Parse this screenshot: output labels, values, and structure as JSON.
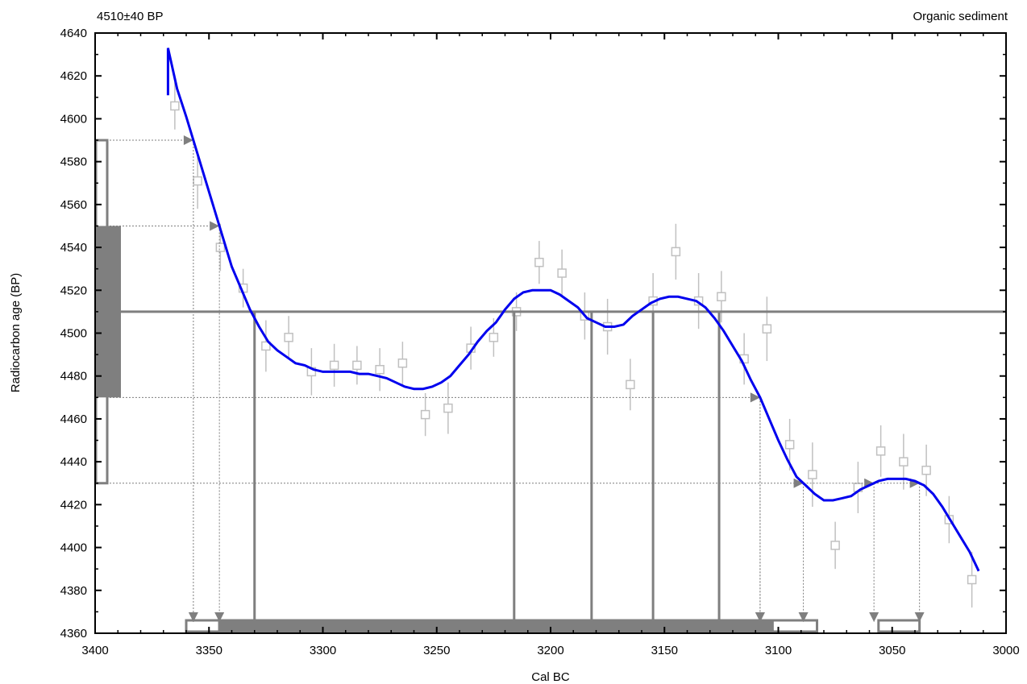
{
  "chart_data": {
    "type": "line",
    "title_left": "4510±40 BP",
    "title_right": "Organic sediment",
    "xlabel": "Cal BC",
    "ylabel": "Radiocarbon age (BP)",
    "xlim": [
      3400,
      3000
    ],
    "ylim": [
      4360,
      4640
    ],
    "x_ticks": [
      "3400",
      "3350",
      "3300",
      "3250",
      "3200",
      "3150",
      "3100",
      "3050",
      "3000"
    ],
    "y_ticks": [
      "4360",
      "4380",
      "4400",
      "4420",
      "4440",
      "4460",
      "4480",
      "4500",
      "4520",
      "4540",
      "4560",
      "4580",
      "4600",
      "4620",
      "4640"
    ],
    "colors": {
      "curve": "#0000ee",
      "annotation": "#7f7f7f",
      "raw_data": "#c0c0c0",
      "axes": "#000000"
    },
    "measured_age": 4510,
    "sigma1_range": [
      4470,
      4550
    ],
    "sigma2_range": [
      4430,
      4590
    ],
    "sigma1_intervals": [
      [
        3346,
        3102
      ]
    ],
    "sigma2_intervals": [
      [
        3360,
        3083
      ],
      [
        3056,
        3038
      ]
    ],
    "intercept_years": [
      3330,
      3216,
      3182,
      3155,
      3126
    ],
    "calibration_curve": {
      "x": [
        3368,
        3364,
        3360,
        3356,
        3352,
        3348,
        3344,
        3340,
        3336,
        3332,
        3328,
        3324,
        3320,
        3316,
        3312,
        3308,
        3304,
        3300,
        3296,
        3292,
        3288,
        3284,
        3280,
        3276,
        3272,
        3268,
        3264,
        3260,
        3256,
        3252,
        3248,
        3244,
        3240,
        3236,
        3232,
        3228,
        3224,
        3220,
        3216,
        3212,
        3208,
        3204,
        3200,
        3196,
        3192,
        3188,
        3184,
        3180,
        3176,
        3172,
        3168,
        3164,
        3160,
        3156,
        3152,
        3148,
        3144,
        3140,
        3136,
        3132,
        3128,
        3124,
        3120,
        3116,
        3112,
        3108,
        3104,
        3100,
        3096,
        3092,
        3088,
        3084,
        3080,
        3076,
        3072,
        3068,
        3064,
        3060,
        3056,
        3052,
        3048,
        3044,
        3040,
        3036,
        3032,
        3028,
        3024,
        3020,
        3016,
        3012
      ],
      "y": [
        4633,
        4614,
        4601,
        4587,
        4573,
        4559,
        4545,
        4531,
        4521,
        4511,
        4503,
        4496,
        4492,
        4489,
        4486,
        4485,
        4483,
        4482,
        4482,
        4482,
        4482,
        4481,
        4481,
        4480,
        4479,
        4477,
        4475,
        4474,
        4474,
        4475,
        4477,
        4480,
        4485,
        4490,
        4496,
        4501,
        4505,
        4511,
        4516,
        4519,
        4520,
        4520,
        4520,
        4518,
        4515,
        4512,
        4507,
        4505,
        4503,
        4503,
        4504,
        4508,
        4511,
        4514,
        4516,
        4517,
        4517,
        4516,
        4515,
        4512,
        4507,
        4501,
        4494,
        4487,
        4478,
        4470,
        4460,
        4450,
        4441,
        4433,
        4429,
        4425,
        4422,
        4422,
        4423,
        4424,
        4427,
        4429,
        4431,
        4432,
        4432,
        4432,
        4431,
        4429,
        4425,
        4419,
        4412,
        4405,
        4398,
        4389
      ]
    },
    "raw_data": {
      "x": [
        3365,
        3355,
        3345,
        3335,
        3325,
        3315,
        3305,
        3295,
        3285,
        3275,
        3265,
        3255,
        3245,
        3235,
        3225,
        3215,
        3205,
        3195,
        3185,
        3175,
        3165,
        3155,
        3145,
        3135,
        3125,
        3115,
        3105,
        3095,
        3085,
        3075,
        3065,
        3055,
        3045,
        3035,
        3025,
        3015
      ],
      "y": [
        4606,
        4571,
        4540,
        4521,
        4494,
        4498,
        4482,
        4485,
        4485,
        4483,
        4486,
        4462,
        4465,
        4493,
        4498,
        4510,
        4533,
        4528,
        4508,
        4503,
        4476,
        4515,
        4538,
        4515,
        4517,
        4488,
        4502,
        4448,
        4434,
        4401,
        4428,
        4445,
        4440,
        4436,
        4413,
        4385
      ],
      "err": [
        11,
        13,
        11,
        9,
        12,
        10,
        11,
        10,
        9,
        10,
        10,
        10,
        12,
        10,
        9,
        9,
        10,
        11,
        11,
        13,
        12,
        13,
        13,
        13,
        12,
        12,
        15,
        12,
        15,
        11,
        12,
        12,
        13,
        12,
        11,
        13
      ]
    }
  }
}
